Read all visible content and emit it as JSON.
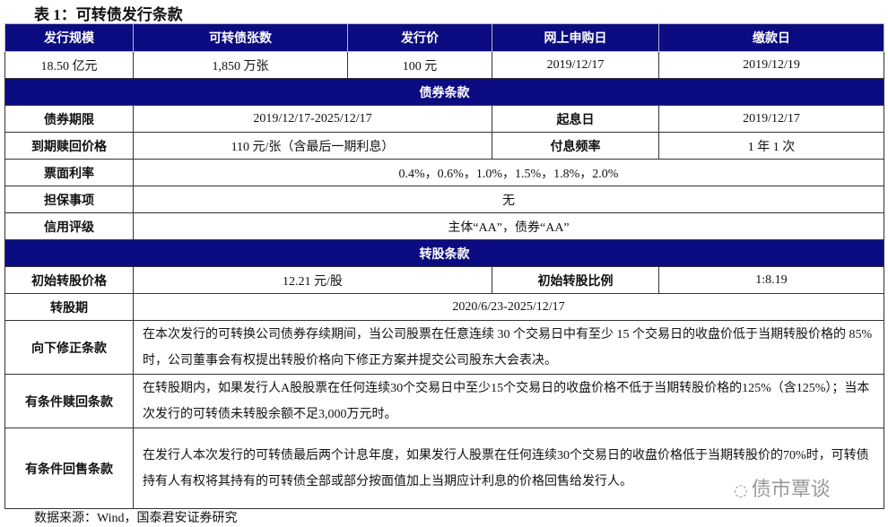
{
  "title": "表 1：可转债发行条款",
  "header": [
    "发行规模",
    "可转债张数",
    "发行价",
    "网上申购日",
    "缴款日"
  ],
  "issue_values": [
    "18.50 亿元",
    "1,850 万张",
    "100 元",
    "2019/12/17",
    "2019/12/19"
  ],
  "bond_section": "债券条款",
  "bond": {
    "term_label": "债券期限",
    "term_value": "2019/12/17-2025/12/17",
    "start_label": "起息日",
    "start_value": "2019/12/17",
    "redeem_label": "到期赎回价格",
    "redeem_value": "110 元/张（含最后一期利息）",
    "freq_label": "付息频率",
    "freq_value": "1 年 1 次",
    "coupon_label": "票面利率",
    "coupon_value": "0.4%，0.6%，1.0%，1.5%，1.8%，2.0%",
    "guarantee_label": "担保事项",
    "guarantee_value": "无",
    "rating_label": "信用评级",
    "rating_value": "主体“AA”，债券“AA”"
  },
  "conv_section": "转股条款",
  "conv": {
    "price_label": "初始转股价格",
    "price_value": "12.21 元/股",
    "ratio_label": "初始转股比例",
    "ratio_value": "1:8.19",
    "period_label": "转股期",
    "period_value": "2020/6/23-2025/12/17",
    "down_label": "向下修正条款",
    "down_value": "在本次发行的可转换公司债券存续期间，当公司股票在任意连续 30 个交易日中有至少 15 个交易日的收盘价低于当期转股价格的 85%时，公司董事会有权提出转股价格向下修正方案并提交公司股东大会表决。",
    "call_label": "有条件赎回条款",
    "call_value": "在转股期内，如果发行人A股股票在任何连续30个交易日中至少15个交易日的收盘价格不低于当期转股价格的125%（含125%）；当本次发行的可转债未转股余额不足3,000万元时。",
    "put_label": "有条件回售条款",
    "put_value": "在发行人本次发行的可转债最后两个计息年度，如果发行人股票在任何连续30个交易日的收盘价格低于当期转股价的70%时，可转债持有人有权将其持有的可转债全部或部分按面值加上当期应计利息的价格回售给发行人。"
  },
  "source": "数据来源：Wind，国泰君安证券研究",
  "watermark": "债市覃谈",
  "colors": {
    "header_bg": "#0c0c82"
  }
}
